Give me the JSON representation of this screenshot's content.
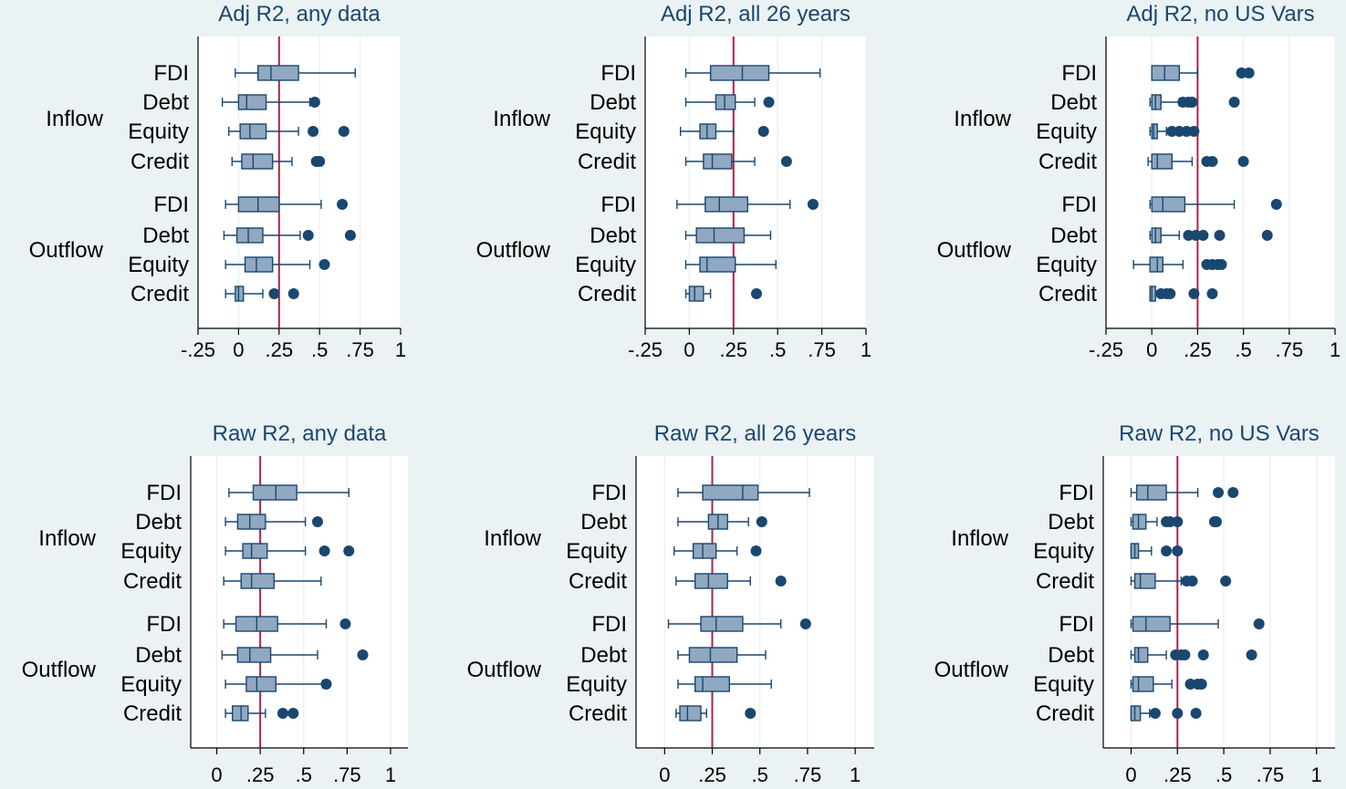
{
  "colors": {
    "background": "#EAF2F3",
    "plot_background": "#FFFFFF",
    "box_fill": "#90A8C0",
    "stroke": "#1A476F",
    "reference_line": "#B0204A",
    "grid": "#EAF2F3",
    "title_text": "#1A476F",
    "label_text": "#000000"
  },
  "chart_data": [
    {
      "type": "box",
      "title": "Adj R2, any data",
      "xlim": [
        -0.25,
        1.0
      ],
      "xticks": [
        -0.25,
        0,
        0.25,
        0.5,
        0.75,
        1
      ],
      "xtick_labels": [
        "-.25",
        "0",
        ".25",
        ".5",
        ".75",
        "1"
      ],
      "reference_line": 0.25,
      "groups": [
        {
          "label": "Inflow",
          "series": [
            {
              "label": "FDI",
              "whisker_low": -0.02,
              "q1": 0.12,
              "median": 0.2,
              "q3": 0.37,
              "whisker_high": 0.72,
              "outliers": []
            },
            {
              "label": "Debt",
              "whisker_low": -0.1,
              "q1": 0.0,
              "median": 0.05,
              "q3": 0.17,
              "whisker_high": 0.44,
              "outliers": [
                0.47
              ]
            },
            {
              "label": "Equity",
              "whisker_low": -0.06,
              "q1": 0.01,
              "median": 0.07,
              "q3": 0.17,
              "whisker_high": 0.37,
              "outliers": [
                0.46,
                0.65
              ]
            },
            {
              "label": "Credit",
              "whisker_low": -0.04,
              "q1": 0.02,
              "median": 0.09,
              "q3": 0.21,
              "whisker_high": 0.33,
              "outliers": [
                0.48,
                0.5
              ]
            }
          ]
        },
        {
          "label": "Outflow",
          "series": [
            {
              "label": "FDI",
              "whisker_low": -0.08,
              "q1": 0.0,
              "median": 0.12,
              "q3": 0.25,
              "whisker_high": 0.51,
              "outliers": [
                0.64
              ]
            },
            {
              "label": "Debt",
              "whisker_low": -0.09,
              "q1": -0.01,
              "median": 0.06,
              "q3": 0.15,
              "whisker_high": 0.38,
              "outliers": [
                0.43,
                0.69
              ]
            },
            {
              "label": "Equity",
              "whisker_low": -0.08,
              "q1": 0.04,
              "median": 0.11,
              "q3": 0.21,
              "whisker_high": 0.44,
              "outliers": [
                0.53
              ]
            },
            {
              "label": "Credit",
              "whisker_low": -0.08,
              "q1": -0.02,
              "median": 0.0,
              "q3": 0.03,
              "whisker_high": 0.15,
              "outliers": [
                0.22,
                0.34
              ]
            }
          ]
        }
      ]
    },
    {
      "type": "box",
      "title": "Adj R2, all 26 years",
      "xlim": [
        -0.25,
        1.0
      ],
      "xticks": [
        -0.25,
        0,
        0.25,
        0.5,
        0.75,
        1
      ],
      "xtick_labels": [
        "-.25",
        "0",
        ".25",
        ".5",
        ".75",
        "1"
      ],
      "reference_line": 0.25,
      "groups": [
        {
          "label": "Inflow",
          "series": [
            {
              "label": "FDI",
              "whisker_low": -0.02,
              "q1": 0.12,
              "median": 0.3,
              "q3": 0.45,
              "whisker_high": 0.74,
              "outliers": []
            },
            {
              "label": "Debt",
              "whisker_low": -0.02,
              "q1": 0.15,
              "median": 0.2,
              "q3": 0.26,
              "whisker_high": 0.37,
              "outliers": [
                0.45
              ]
            },
            {
              "label": "Equity",
              "whisker_low": -0.05,
              "q1": 0.06,
              "median": 0.1,
              "q3": 0.15,
              "whisker_high": 0.25,
              "outliers": [
                0.42
              ]
            },
            {
              "label": "Credit",
              "whisker_low": -0.02,
              "q1": 0.08,
              "median": 0.13,
              "q3": 0.24,
              "whisker_high": 0.37,
              "outliers": [
                0.55
              ]
            }
          ]
        },
        {
          "label": "Outflow",
          "series": [
            {
              "label": "FDI",
              "whisker_low": -0.07,
              "q1": 0.09,
              "median": 0.17,
              "q3": 0.33,
              "whisker_high": 0.57,
              "outliers": [
                0.7
              ]
            },
            {
              "label": "Debt",
              "whisker_low": -0.02,
              "q1": 0.04,
              "median": 0.14,
              "q3": 0.31,
              "whisker_high": 0.46,
              "outliers": []
            },
            {
              "label": "Equity",
              "whisker_low": -0.02,
              "q1": 0.06,
              "median": 0.1,
              "q3": 0.26,
              "whisker_high": 0.49,
              "outliers": []
            },
            {
              "label": "Credit",
              "whisker_low": -0.02,
              "q1": 0.0,
              "median": 0.03,
              "q3": 0.08,
              "whisker_high": 0.12,
              "outliers": [
                0.38
              ]
            }
          ]
        }
      ]
    },
    {
      "type": "box",
      "title": "Adj R2, no US Vars",
      "xlim": [
        -0.25,
        1.0
      ],
      "xticks": [
        -0.25,
        0,
        0.25,
        0.5,
        0.75,
        1
      ],
      "xtick_labels": [
        "-.25",
        "0",
        ".25",
        ".5",
        ".75",
        "1"
      ],
      "reference_line": 0.25,
      "groups": [
        {
          "label": "Inflow",
          "series": [
            {
              "label": "FDI",
              "whisker_low": 0.0,
              "q1": 0.0,
              "median": 0.07,
              "q3": 0.15,
              "whisker_high": 0.25,
              "outliers": [
                0.49,
                0.53
              ]
            },
            {
              "label": "Debt",
              "whisker_low": -0.01,
              "q1": 0.0,
              "median": 0.02,
              "q3": 0.05,
              "whisker_high": 0.15,
              "outliers": [
                0.17,
                0.2,
                0.22,
                0.45
              ]
            },
            {
              "label": "Equity",
              "whisker_low": -0.01,
              "q1": 0.0,
              "median": 0.01,
              "q3": 0.03,
              "whisker_high": 0.08,
              "outliers": [
                0.11,
                0.15,
                0.19,
                0.23
              ]
            },
            {
              "label": "Credit",
              "whisker_low": -0.02,
              "q1": 0.0,
              "median": 0.03,
              "q3": 0.11,
              "whisker_high": 0.22,
              "outliers": [
                0.3,
                0.33,
                0.5
              ]
            }
          ]
        },
        {
          "label": "Outflow",
          "series": [
            {
              "label": "FDI",
              "whisker_low": -0.01,
              "q1": 0.0,
              "median": 0.06,
              "q3": 0.18,
              "whisker_high": 0.45,
              "outliers": [
                0.68
              ]
            },
            {
              "label": "Debt",
              "whisker_low": -0.01,
              "q1": 0.0,
              "median": 0.02,
              "q3": 0.05,
              "whisker_high": 0.15,
              "outliers": [
                0.2,
                0.24,
                0.28,
                0.37,
                0.63
              ]
            },
            {
              "label": "Equity",
              "whisker_low": -0.1,
              "q1": -0.01,
              "median": 0.03,
              "q3": 0.06,
              "whisker_high": 0.17,
              "outliers": [
                0.3,
                0.33,
                0.36,
                0.38
              ]
            },
            {
              "label": "Credit",
              "whisker_low": -0.01,
              "q1": -0.01,
              "median": 0.0,
              "q3": 0.02,
              "whisker_high": 0.04,
              "outliers": [
                0.05,
                0.08,
                0.1,
                0.23,
                0.33
              ]
            }
          ]
        }
      ]
    },
    {
      "type": "box",
      "title": "Raw R2, any data",
      "xlim": [
        -0.15,
        1.1
      ],
      "xticks": [
        0,
        0.25,
        0.5,
        0.75,
        1
      ],
      "xtick_labels": [
        "0",
        ".25",
        ".5",
        ".75",
        "1"
      ],
      "reference_line": 0.25,
      "groups": [
        {
          "label": "Inflow",
          "series": [
            {
              "label": "FDI",
              "whisker_low": 0.07,
              "q1": 0.21,
              "median": 0.34,
              "q3": 0.46,
              "whisker_high": 0.76,
              "outliers": []
            },
            {
              "label": "Debt",
              "whisker_low": 0.05,
              "q1": 0.12,
              "median": 0.19,
              "q3": 0.28,
              "whisker_high": 0.51,
              "outliers": [
                0.58
              ]
            },
            {
              "label": "Equity",
              "whisker_low": 0.05,
              "q1": 0.15,
              "median": 0.2,
              "q3": 0.29,
              "whisker_high": 0.51,
              "outliers": [
                0.62,
                0.76
              ]
            },
            {
              "label": "Credit",
              "whisker_low": 0.04,
              "q1": 0.14,
              "median": 0.2,
              "q3": 0.33,
              "whisker_high": 0.6,
              "outliers": []
            }
          ]
        },
        {
          "label": "Outflow",
          "series": [
            {
              "label": "FDI",
              "whisker_low": 0.04,
              "q1": 0.11,
              "median": 0.23,
              "q3": 0.35,
              "whisker_high": 0.63,
              "outliers": [
                0.74
              ]
            },
            {
              "label": "Debt",
              "whisker_low": 0.03,
              "q1": 0.12,
              "median": 0.19,
              "q3": 0.31,
              "whisker_high": 0.58,
              "outliers": [
                0.84
              ]
            },
            {
              "label": "Equity",
              "whisker_low": 0.05,
              "q1": 0.17,
              "median": 0.23,
              "q3": 0.34,
              "whisker_high": 0.61,
              "outliers": [
                0.63
              ]
            },
            {
              "label": "Credit",
              "whisker_low": 0.05,
              "q1": 0.09,
              "median": 0.14,
              "q3": 0.18,
              "whisker_high": 0.28,
              "outliers": [
                0.38,
                0.44
              ]
            }
          ]
        }
      ]
    },
    {
      "type": "box",
      "title": "Raw R2, all 26 years",
      "xlim": [
        -0.15,
        1.1
      ],
      "xticks": [
        0,
        0.25,
        0.5,
        0.75,
        1
      ],
      "xtick_labels": [
        "0",
        ".25",
        ".5",
        ".75",
        "1"
      ],
      "reference_line": 0.25,
      "groups": [
        {
          "label": "Inflow",
          "series": [
            {
              "label": "FDI",
              "whisker_low": 0.07,
              "q1": 0.2,
              "median": 0.41,
              "q3": 0.49,
              "whisker_high": 0.76,
              "outliers": []
            },
            {
              "label": "Debt",
              "whisker_low": 0.07,
              "q1": 0.23,
              "median": 0.28,
              "q3": 0.33,
              "whisker_high": 0.44,
              "outliers": [
                0.51
              ]
            },
            {
              "label": "Equity",
              "whisker_low": 0.05,
              "q1": 0.15,
              "median": 0.2,
              "q3": 0.27,
              "whisker_high": 0.38,
              "outliers": [
                0.48
              ]
            },
            {
              "label": "Credit",
              "whisker_low": 0.06,
              "q1": 0.16,
              "median": 0.23,
              "q3": 0.33,
              "whisker_high": 0.45,
              "outliers": [
                0.61
              ]
            }
          ]
        },
        {
          "label": "Outflow",
          "series": [
            {
              "label": "FDI",
              "whisker_low": 0.02,
              "q1": 0.19,
              "median": 0.27,
              "q3": 0.41,
              "whisker_high": 0.61,
              "outliers": [
                0.74
              ]
            },
            {
              "label": "Debt",
              "whisker_low": 0.07,
              "q1": 0.13,
              "median": 0.24,
              "q3": 0.38,
              "whisker_high": 0.53,
              "outliers": []
            },
            {
              "label": "Equity",
              "whisker_low": 0.07,
              "q1": 0.16,
              "median": 0.2,
              "q3": 0.34,
              "whisker_high": 0.56,
              "outliers": []
            },
            {
              "label": "Credit",
              "whisker_low": 0.06,
              "q1": 0.08,
              "median": 0.12,
              "q3": 0.19,
              "whisker_high": 0.22,
              "outliers": [
                0.45
              ]
            }
          ]
        }
      ]
    },
    {
      "type": "box",
      "title": "Raw R2, no US Vars",
      "xlim": [
        -0.15,
        1.1
      ],
      "xticks": [
        0,
        0.25,
        0.5,
        0.75,
        1
      ],
      "xtick_labels": [
        "0",
        ".25",
        ".5",
        ".75",
        "1"
      ],
      "reference_line": 0.25,
      "groups": [
        {
          "label": "Inflow",
          "series": [
            {
              "label": "FDI",
              "whisker_low": 0.0,
              "q1": 0.03,
              "median": 0.09,
              "q3": 0.19,
              "whisker_high": 0.36,
              "outliers": [
                0.47,
                0.55
              ]
            },
            {
              "label": "Debt",
              "whisker_low": 0.0,
              "q1": 0.01,
              "median": 0.04,
              "q3": 0.08,
              "whisker_high": 0.14,
              "outliers": [
                0.19,
                0.21,
                0.25,
                0.45,
                0.46
              ]
            },
            {
              "label": "Equity",
              "whisker_low": 0.0,
              "q1": 0.0,
              "median": 0.02,
              "q3": 0.04,
              "whisker_high": 0.11,
              "outliers": [
                0.19,
                0.25
              ]
            },
            {
              "label": "Credit",
              "whisker_low": 0.0,
              "q1": 0.02,
              "median": 0.05,
              "q3": 0.13,
              "whisker_high": 0.27,
              "outliers": [
                0.3,
                0.33,
                0.51
              ]
            }
          ]
        },
        {
          "label": "Outflow",
          "series": [
            {
              "label": "FDI",
              "whisker_low": 0.0,
              "q1": 0.01,
              "median": 0.08,
              "q3": 0.21,
              "whisker_high": 0.47,
              "outliers": [
                0.69
              ]
            },
            {
              "label": "Debt",
              "whisker_low": 0.0,
              "q1": 0.02,
              "median": 0.04,
              "q3": 0.09,
              "whisker_high": 0.19,
              "outliers": [
                0.24,
                0.27,
                0.29,
                0.39,
                0.65
              ]
            },
            {
              "label": "Equity",
              "whisker_low": 0.0,
              "q1": 0.01,
              "median": 0.04,
              "q3": 0.12,
              "whisker_high": 0.22,
              "outliers": [
                0.32,
                0.36,
                0.38
              ]
            },
            {
              "label": "Credit",
              "whisker_low": 0.0,
              "q1": 0.0,
              "median": 0.02,
              "q3": 0.05,
              "whisker_high": 0.1,
              "outliers": [
                0.13,
                0.25,
                0.35
              ]
            }
          ]
        }
      ]
    }
  ]
}
